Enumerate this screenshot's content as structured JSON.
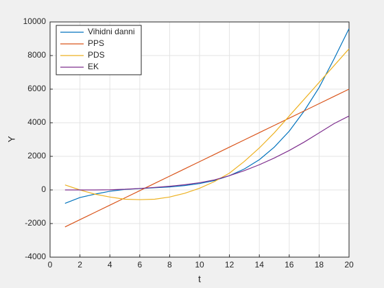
{
  "chart_data": {
    "type": "line",
    "xlabel": "t",
    "ylabel": "Y",
    "x": [
      1,
      2,
      3,
      4,
      5,
      6,
      7,
      8,
      9,
      10,
      11,
      12,
      13,
      14,
      15,
      16,
      17,
      18,
      19,
      20
    ],
    "series": [
      {
        "name": "Vihidni danni",
        "color": "#0072BD",
        "values": [
          -800,
          -450,
          -250,
          -80,
          30,
          80,
          130,
          180,
          260,
          380,
          560,
          850,
          1250,
          1800,
          2550,
          3500,
          4700,
          6100,
          7800,
          9600
        ]
      },
      {
        "name": "PPS",
        "color": "#D95319",
        "values": [
          -2200,
          -1768,
          -1337,
          -905,
          -474,
          -42,
          389,
          821,
          1253,
          1684,
          2116,
          2547,
          2979,
          3411,
          3842,
          4274,
          4705,
          5137,
          5568,
          6000
        ]
      },
      {
        "name": "PDS",
        "color": "#EDB120",
        "values": [
          300,
          0,
          -250,
          -420,
          -550,
          -580,
          -550,
          -420,
          -200,
          100,
          500,
          1000,
          1700,
          2500,
          3400,
          4400,
          5400,
          6400,
          7400,
          8400
        ]
      },
      {
        "name": "EK",
        "color": "#7E2F8E",
        "values": [
          0,
          0,
          0,
          10,
          40,
          90,
          150,
          220,
          310,
          430,
          600,
          850,
          1150,
          1500,
          1900,
          2350,
          2850,
          3400,
          3950,
          4400
        ]
      }
    ],
    "xlim": [
      0,
      20
    ],
    "xticks": [
      0,
      2,
      4,
      6,
      8,
      10,
      12,
      14,
      16,
      18,
      20
    ],
    "ylim": [
      -4000,
      10000
    ],
    "yticks": [
      -4000,
      -2000,
      0,
      2000,
      4000,
      6000,
      8000,
      10000
    ],
    "grid": true,
    "legend": "northwest"
  }
}
